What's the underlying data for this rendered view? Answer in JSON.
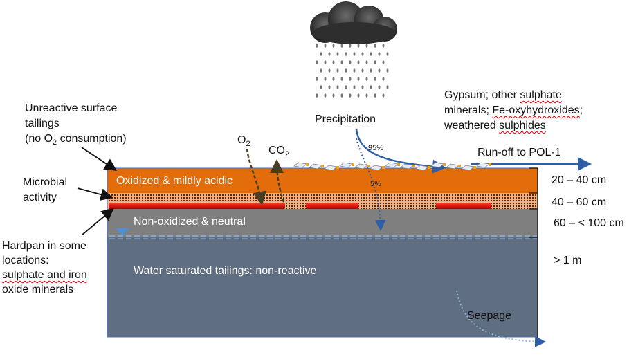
{
  "layers": {
    "oxidized": "Oxidized & mildly acidic",
    "non_oxidized": "Non-oxidized & neutral",
    "saturated": "Water saturated tailings: non-reactive"
  },
  "left_labels": {
    "unreactive_line1": "Unreactive surface",
    "unreactive_line2": "tailings",
    "unreactive_line3_pre": "(no O",
    "unreactive_line3_sub": "2",
    "unreactive_line3_post": " consumption)",
    "microbial_line1": "Microbial",
    "microbial_line2": "activity",
    "hardpan_line1": "Hardpan in some",
    "hardpan_line2": "locations:",
    "hardpan_line3": "sulphate and iron",
    "hardpan_line4": "oxide minerals"
  },
  "gases": {
    "o2_main": "O",
    "o2_sub": "2",
    "co2_main": "CO",
    "co2_sub": "2"
  },
  "precipitation": {
    "label": "Precipitation",
    "runoff_percent": "95%",
    "infiltration_percent": "5%"
  },
  "minerals": {
    "line1_a": "Gypsum; other ",
    "line1_b": "sulphate",
    "line2_a": "minerals; ",
    "line2_b": "Fe-oxyhydroxides",
    "line2_c": ";",
    "line3_a": "weathered ",
    "line3_b": "sulphides"
  },
  "runoff_label": "Run-off to POL-1",
  "seepage_label": "Seepage",
  "depths": [
    "20 – 40 cm",
    "40 – 60 cm",
    "60 – < 100 cm",
    "> 1 m"
  ],
  "colors": {
    "oxidized": "#e36c0a",
    "microbial": "#f2a878",
    "hardpan": "#e0000a",
    "non_oxidized": "#7f7f7f",
    "saturated": "#5f6e80",
    "arrow_blue": "#2e5fa6",
    "cloud": "#4a4a4a"
  }
}
